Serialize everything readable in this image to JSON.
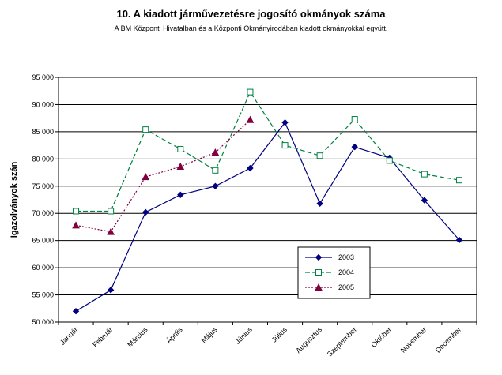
{
  "chart_data": {
    "type": "line",
    "title": "10. A  kiadott járművezetésre  jogosító okmányok száma",
    "subtitle": "A BM Központi Hivatalban és  a Központi Okmányirodában kiadott okmányokkal együtt.",
    "ylabel": "Igazolványok szán",
    "xlabel": "",
    "ylim": [
      50000,
      95000
    ],
    "y_ticks": [
      "50 000",
      "55 000",
      "60 000",
      "65 000",
      "70 000",
      "75 000",
      "80 000",
      "85 000",
      "90 000",
      "95 000"
    ],
    "y_tick_values": [
      50000,
      55000,
      60000,
      65000,
      70000,
      75000,
      80000,
      85000,
      90000,
      95000
    ],
    "categories": [
      "Január",
      "Február",
      "Március",
      "Április",
      "Május",
      "Június",
      "Július",
      "Augusztus",
      "Szeptember",
      "Október",
      "November",
      "December"
    ],
    "grid": true,
    "legend_position": "bottom-right",
    "series": [
      {
        "name": "2003",
        "color": "#000080",
        "marker": "diamond",
        "dash": "solid",
        "values": [
          52000,
          55900,
          70200,
          73400,
          75000,
          78300,
          86700,
          71800,
          82200,
          80200,
          72400,
          65100
        ]
      },
      {
        "name": "2004",
        "color": "#008040",
        "marker": "square",
        "dash": "dashed",
        "values": [
          70400,
          70400,
          85400,
          81800,
          77900,
          92300,
          82500,
          80600,
          87300,
          79700,
          77200,
          76100
        ]
      },
      {
        "name": "2005",
        "color": "#800040",
        "marker": "triangle",
        "dash": "dotted",
        "values": [
          67800,
          66600,
          76700,
          78600,
          81200,
          87200,
          null,
          null,
          null,
          null,
          null,
          null
        ]
      }
    ]
  }
}
